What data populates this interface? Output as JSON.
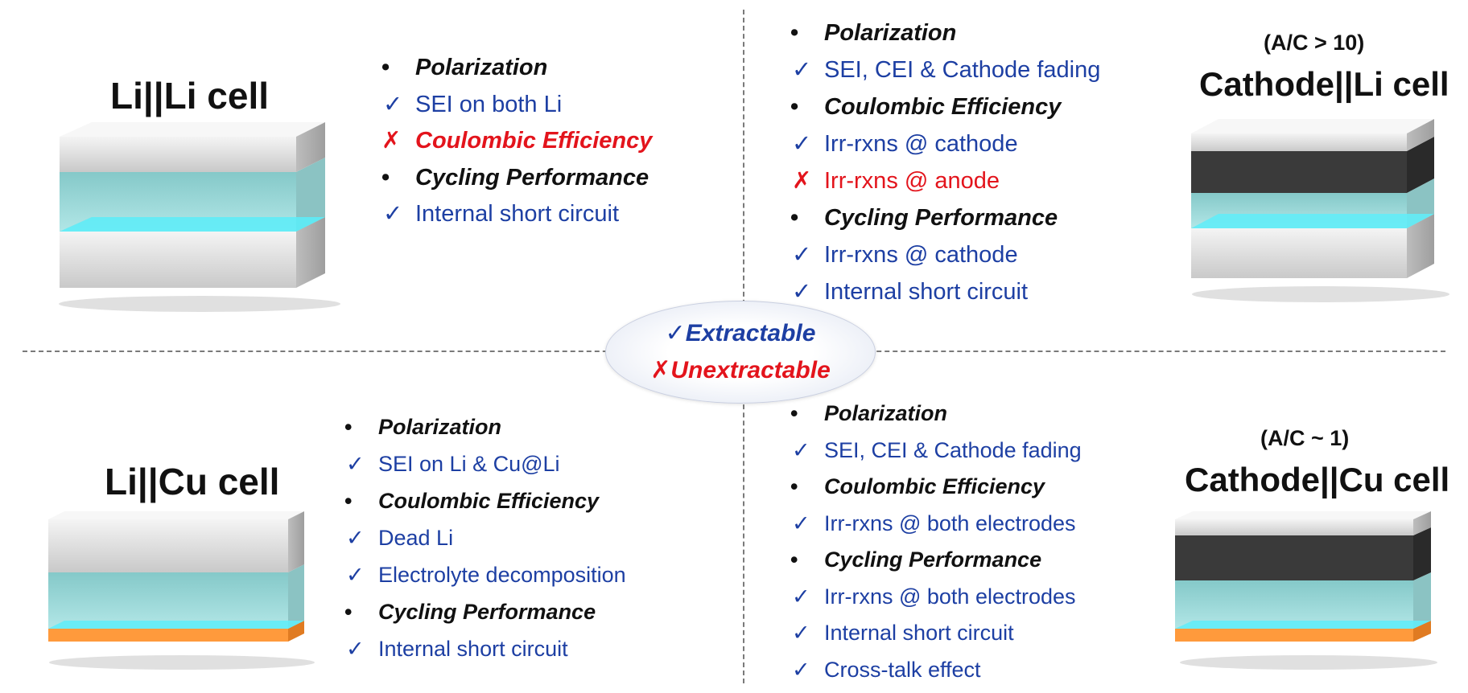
{
  "legend": {
    "extractable_symbol": "✓",
    "extractable_label": "Extractable",
    "unextractable_symbol": "✗",
    "unextractable_label": "Unextractable",
    "extractable_color": "#1d3fa3",
    "unextractable_color": "#e3141c"
  },
  "quadrants": {
    "li_li": {
      "title": "Li||Li cell",
      "items": [
        {
          "kind": "prop",
          "text": "Polarization"
        },
        {
          "kind": "ok",
          "text": "SEI on both Li"
        },
        {
          "kind": "bad-prop",
          "text": "Coulombic Efficiency"
        },
        {
          "kind": "prop",
          "text": "Cycling Performance"
        },
        {
          "kind": "ok",
          "text": "Internal short circuit"
        }
      ]
    },
    "cathode_li": {
      "ratio": "(A/C > 10)",
      "title": "Cathode||Li cell",
      "items": [
        {
          "kind": "prop",
          "text": "Polarization"
        },
        {
          "kind": "ok",
          "text": "SEI, CEI & Cathode fading"
        },
        {
          "kind": "prop",
          "text": "Coulombic Efficiency"
        },
        {
          "kind": "ok",
          "text": "Irr-rxns @ cathode"
        },
        {
          "kind": "bad",
          "text": "Irr-rxns @ anode"
        },
        {
          "kind": "prop",
          "text": "Cycling Performance"
        },
        {
          "kind": "ok",
          "text": "Irr-rxns @ cathode"
        },
        {
          "kind": "ok",
          "text": "Internal short circuit"
        }
      ]
    },
    "li_cu": {
      "title": "Li||Cu cell",
      "items": [
        {
          "kind": "prop",
          "text": "Polarization"
        },
        {
          "kind": "ok",
          "text": "SEI on Li & Cu@Li"
        },
        {
          "kind": "prop",
          "text": "Coulombic Efficiency"
        },
        {
          "kind": "ok",
          "text": "Dead Li"
        },
        {
          "kind": "ok",
          "text": "Electrolyte decomposition"
        },
        {
          "kind": "prop",
          "text": "Cycling Performance"
        },
        {
          "kind": "ok",
          "text": "Internal short circuit"
        }
      ]
    },
    "cathode_cu": {
      "ratio": "(A/C ~ 1)",
      "title": "Cathode||Cu cell",
      "items": [
        {
          "kind": "prop",
          "text": "Polarization"
        },
        {
          "kind": "ok",
          "text": "SEI, CEI & Cathode fading"
        },
        {
          "kind": "prop",
          "text": "Coulombic Efficiency"
        },
        {
          "kind": "ok",
          "text": "Irr-rxns @ both electrodes"
        },
        {
          "kind": "prop",
          "text": "Cycling Performance"
        },
        {
          "kind": "ok",
          "text": "Irr-rxns @ both electrodes"
        },
        {
          "kind": "ok",
          "text": "Internal short circuit"
        },
        {
          "kind": "ok",
          "text": "Cross-talk effect"
        }
      ]
    }
  },
  "colors": {
    "electrolyte": "#7fd3d6",
    "separator": "#5ce6f2",
    "lithium": "#e6e6e6",
    "cathode": "#3a3a3a",
    "copper": "#ff9a3c"
  }
}
